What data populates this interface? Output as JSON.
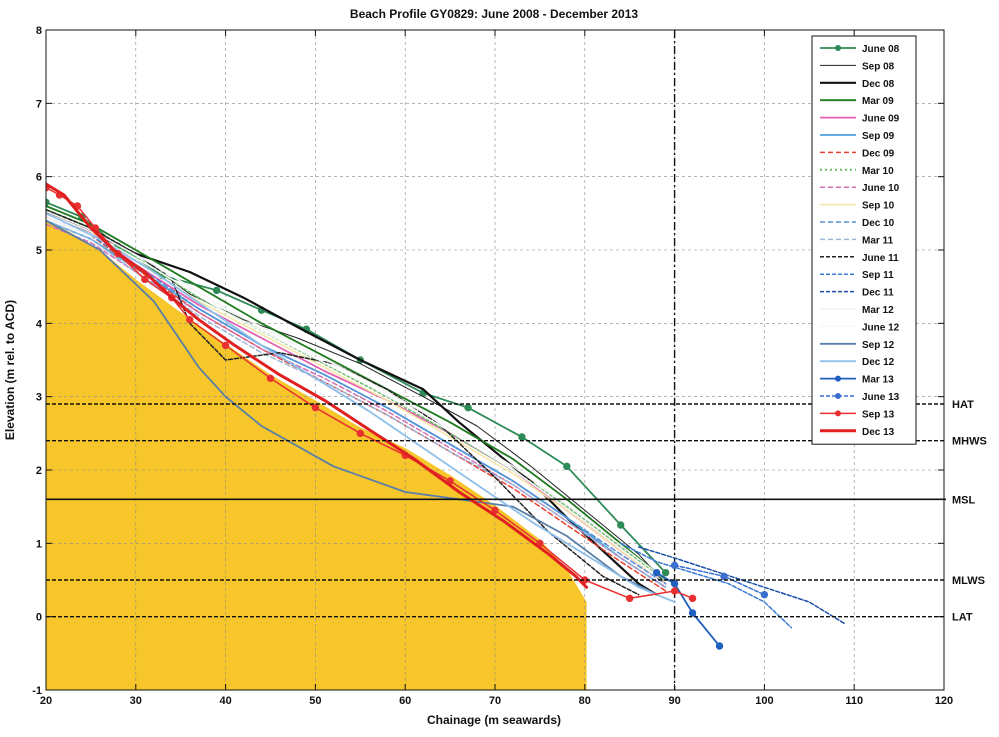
{
  "chart_data": {
    "type": "line",
    "title": "Beach Profile GY0829: June 2008 - December 2013",
    "xlabel": "Chainage (m seawards)",
    "ylabel": "Elevation (m rel. to ACD)",
    "xlim": [
      20,
      120
    ],
    "ylim": [
      -1,
      8
    ],
    "xticks": [
      "20",
      "30",
      "40",
      "50",
      "60",
      "70",
      "80",
      "90",
      "100",
      "110",
      "120"
    ],
    "yticks": [
      "-1",
      "0",
      "1",
      "2",
      "3",
      "4",
      "5",
      "6",
      "7",
      "8"
    ],
    "grid": true,
    "legend_position": "top-right",
    "fill_color": "#f7c62b",
    "fill_region": {
      "x": [
        20,
        21,
        23,
        26,
        30,
        35,
        40,
        45,
        50,
        55,
        60,
        65,
        70,
        75,
        78,
        80.2,
        80.2
      ],
      "y": [
        5.4,
        5.35,
        5.22,
        5.0,
        4.6,
        4.15,
        3.72,
        3.3,
        2.95,
        2.58,
        2.3,
        1.93,
        1.52,
        1.05,
        0.65,
        0.2,
        -1
      ]
    },
    "reference_lines": [
      {
        "label": "HAT",
        "y": 2.9,
        "style": "dashed"
      },
      {
        "label": "MHWS",
        "y": 2.4,
        "style": "dashed"
      },
      {
        "label": "MSL",
        "y": 1.6,
        "style": "solid"
      },
      {
        "label": "MLWS",
        "y": 0.5,
        "style": "dashed"
      },
      {
        "label": "LAT",
        "y": 0.0,
        "style": "dashed"
      }
    ],
    "vertical_line": {
      "x": 90,
      "style": "dash-dot"
    },
    "series": [
      {
        "name": "June 08",
        "color": "#2e8b57",
        "dash": "",
        "width": 1.8,
        "markers": true,
        "x": [
          20,
          24,
          28,
          33,
          39,
          44,
          49,
          55,
          62,
          67,
          73,
          78,
          84,
          89
        ],
        "y": [
          5.65,
          5.45,
          5.05,
          4.65,
          4.45,
          4.18,
          3.92,
          3.5,
          3.05,
          2.85,
          2.45,
          2.05,
          1.25,
          0.6
        ]
      },
      {
        "name": "Sep 08",
        "color": "#222222",
        "dash": "",
        "width": 1.0,
        "markers": false,
        "x": [
          20,
          25,
          30,
          36,
          42,
          48,
          55,
          62,
          68,
          74,
          80,
          86,
          89
        ],
        "y": [
          5.55,
          5.3,
          4.95,
          4.4,
          4.05,
          3.8,
          3.45,
          3.0,
          2.6,
          2.05,
          1.45,
          0.85,
          0.45
        ]
      },
      {
        "name": "Dec 08",
        "color": "#111111",
        "dash": "",
        "width": 2.2,
        "markers": false,
        "x": [
          20,
          25,
          30,
          36,
          42,
          48,
          55,
          62,
          66,
          70,
          74,
          78,
          82,
          86,
          88
        ],
        "y": [
          5.5,
          5.25,
          4.95,
          4.7,
          4.35,
          3.95,
          3.5,
          3.1,
          2.65,
          2.25,
          1.85,
          1.35,
          0.9,
          0.45,
          0.3
        ]
      },
      {
        "name": "Mar 09",
        "color": "#1f7a1f",
        "dash": "",
        "width": 1.8,
        "markers": false,
        "x": [
          20,
          25,
          30,
          37,
          44,
          51,
          58,
          65,
          72,
          78,
          84,
          89
        ],
        "y": [
          5.6,
          5.35,
          5.0,
          4.5,
          4.0,
          3.55,
          3.1,
          2.65,
          2.15,
          1.6,
          1.0,
          0.5
        ]
      },
      {
        "name": "June 09",
        "color": "#e55fb0",
        "dash": "",
        "width": 1.8,
        "markers": false,
        "x": [
          20,
          25,
          30,
          37,
          44,
          51,
          58,
          65,
          72,
          78,
          84,
          89
        ],
        "y": [
          5.5,
          5.25,
          4.8,
          4.25,
          3.8,
          3.35,
          2.95,
          2.5,
          2.0,
          1.45,
          0.9,
          0.45
        ]
      },
      {
        "name": "Sep 09",
        "color": "#4aa3df",
        "dash": "",
        "width": 1.8,
        "markers": false,
        "x": [
          20,
          25,
          30,
          37,
          44,
          51,
          58,
          65,
          72,
          78,
          84,
          89
        ],
        "y": [
          5.4,
          5.15,
          4.75,
          4.2,
          3.7,
          3.3,
          2.85,
          2.35,
          1.85,
          1.35,
          0.8,
          0.4
        ]
      },
      {
        "name": "Dec 09",
        "color": "#e8412f",
        "dash": "5,3",
        "width": 1.5,
        "markers": false,
        "x": [
          20,
          25,
          30,
          37,
          44,
          51,
          58,
          65,
          72,
          78,
          84,
          89
        ],
        "y": [
          5.45,
          5.2,
          4.75,
          4.15,
          3.65,
          3.2,
          2.75,
          2.25,
          1.75,
          1.25,
          0.75,
          0.35
        ]
      },
      {
        "name": "Mar 10",
        "color": "#6dbb6d",
        "dash": "2,3",
        "width": 2.0,
        "markers": false,
        "x": [
          20,
          25,
          30,
          37,
          44,
          51,
          58,
          65,
          72,
          78,
          84,
          89
        ],
        "y": [
          5.55,
          5.3,
          4.9,
          4.35,
          3.9,
          3.45,
          3.0,
          2.5,
          2.0,
          1.5,
          0.95,
          0.5
        ]
      },
      {
        "name": "June 10",
        "color": "#d36fb5",
        "dash": "5,3",
        "width": 1.5,
        "markers": false,
        "x": [
          20,
          25,
          30,
          37,
          44,
          51,
          58,
          65,
          72,
          78,
          84,
          89
        ],
        "y": [
          5.35,
          5.1,
          4.7,
          4.15,
          3.65,
          3.25,
          2.8,
          2.3,
          1.8,
          1.3,
          0.8,
          0.4
        ]
      },
      {
        "name": "Sep 10",
        "color": "#f5e6a6",
        "dash": "",
        "width": 1.5,
        "markers": false,
        "x": [
          20,
          25,
          30,
          37,
          44,
          51,
          58,
          65,
          72,
          78,
          84,
          89
        ],
        "y": [
          5.5,
          5.25,
          4.85,
          4.3,
          3.85,
          3.4,
          2.95,
          2.45,
          1.95,
          1.45,
          0.9,
          0.45
        ]
      },
      {
        "name": "Dec 10",
        "color": "#5b8fd6",
        "dash": "5,3",
        "width": 1.5,
        "markers": false,
        "x": [
          20,
          25,
          30,
          37,
          44,
          51,
          58,
          65,
          72,
          78,
          84,
          89
        ],
        "y": [
          5.45,
          5.2,
          4.8,
          4.2,
          3.7,
          3.3,
          2.85,
          2.35,
          1.85,
          1.35,
          0.85,
          0.45
        ]
      },
      {
        "name": "Mar 11",
        "color": "#9fb8d8",
        "dash": "5,3",
        "width": 1.5,
        "markers": false,
        "x": [
          20,
          25,
          30,
          37,
          44,
          51,
          58,
          65,
          72,
          78,
          84,
          89
        ],
        "y": [
          5.4,
          5.15,
          4.7,
          4.1,
          3.6,
          3.2,
          2.75,
          2.25,
          1.8,
          1.3,
          0.8,
          0.4
        ]
      },
      {
        "name": "June 11",
        "color": "#222222",
        "dash": "4,2",
        "width": 1.5,
        "markers": false,
        "x": [
          20,
          25,
          30,
          34,
          36,
          40,
          46,
          52,
          58,
          64,
          70,
          76,
          82,
          86
        ],
        "y": [
          5.55,
          5.3,
          4.95,
          4.6,
          4.0,
          3.5,
          3.6,
          3.45,
          3.1,
          2.6,
          1.9,
          1.15,
          0.55,
          0.3
        ]
      },
      {
        "name": "Sep 11",
        "color": "#3b7bd4",
        "dash": "4,2",
        "width": 1.5,
        "markers": false,
        "x": [
          84,
          88,
          92,
          96,
          100,
          103
        ],
        "y": [
          1.0,
          0.75,
          0.6,
          0.45,
          0.2,
          -0.15
        ]
      },
      {
        "name": "Dec 11",
        "color": "#1c4fa8",
        "dash": "4,2",
        "width": 1.5,
        "markers": false,
        "x": [
          86,
          90,
          95,
          100,
          105,
          109
        ],
        "y": [
          0.95,
          0.8,
          0.6,
          0.4,
          0.2,
          -0.1
        ]
      },
      {
        "name": "Mar 12",
        "color": "#f3f3f3",
        "dash": "",
        "width": 1.5,
        "markers": false,
        "x": [
          20,
          26,
          32,
          40,
          48,
          56,
          64,
          72,
          80,
          88
        ],
        "y": [
          5.5,
          5.2,
          4.8,
          4.2,
          3.7,
          3.2,
          2.65,
          2.05,
          1.35,
          0.6
        ]
      },
      {
        "name": "June 12",
        "color": "#f8f8f8",
        "dash": "",
        "width": 1.5,
        "markers": false,
        "x": [
          20,
          26,
          32,
          40,
          48,
          56,
          64,
          72,
          80,
          88
        ],
        "y": [
          5.45,
          5.15,
          4.75,
          4.15,
          3.65,
          3.15,
          2.6,
          2.0,
          1.3,
          0.55
        ]
      },
      {
        "name": "Sep 12",
        "color": "#5a7fa8",
        "dash": "",
        "width": 1.8,
        "markers": false,
        "x": [
          20,
          26,
          32,
          37,
          40,
          44,
          52,
          60,
          66,
          72,
          78,
          84,
          88
        ],
        "y": [
          5.4,
          5.0,
          4.3,
          3.4,
          3.0,
          2.6,
          2.05,
          1.7,
          1.6,
          1.5,
          1.1,
          0.55,
          0.3
        ]
      },
      {
        "name": "Dec 12",
        "color": "#8fc0ea",
        "dash": "",
        "width": 1.8,
        "markers": false,
        "x": [
          20,
          26,
          32,
          38,
          44,
          50,
          56,
          62,
          68,
          74,
          80,
          86,
          90
        ],
        "y": [
          5.5,
          5.15,
          4.7,
          4.2,
          3.7,
          3.25,
          2.8,
          2.3,
          1.8,
          1.3,
          0.85,
          0.4,
          0.2
        ]
      },
      {
        "name": "Mar 13",
        "color": "#1f5fbf",
        "dash": "",
        "width": 1.8,
        "markers": true,
        "x": [
          88,
          90,
          92,
          95
        ],
        "y": [
          0.6,
          0.45,
          0.05,
          -0.4
        ]
      },
      {
        "name": "June 13",
        "color": "#3a6fd0",
        "dash": "4,2",
        "width": 1.5,
        "markers": true,
        "x": [
          90,
          95.5,
          100
        ],
        "y": [
          0.7,
          0.55,
          0.3
        ]
      },
      {
        "name": "Sep 13",
        "color": "#e83030",
        "dash": "",
        "width": 1.5,
        "markers": true,
        "x": [
          20,
          21.5,
          23.5,
          25.5,
          28,
          31,
          34,
          36,
          40,
          45,
          50,
          55,
          60,
          65,
          70,
          75,
          80,
          85,
          90,
          92
        ],
        "y": [
          5.85,
          5.75,
          5.6,
          5.3,
          4.95,
          4.6,
          4.35,
          4.05,
          3.7,
          3.25,
          2.85,
          2.5,
          2.2,
          1.85,
          1.45,
          1.0,
          0.5,
          0.25,
          0.35,
          0.25
        ]
      },
      {
        "name": "Dec 13",
        "color": "#e02020",
        "dash": "",
        "width": 3.0,
        "markers": false,
        "x": [
          20,
          22,
          25,
          28,
          31,
          34,
          37,
          41,
          46,
          51,
          56,
          61,
          66,
          71,
          76,
          79,
          80.2
        ],
        "y": [
          5.9,
          5.75,
          5.3,
          4.95,
          4.7,
          4.35,
          4.05,
          3.7,
          3.3,
          2.95,
          2.55,
          2.15,
          1.7,
          1.3,
          0.85,
          0.55,
          0.4
        ]
      }
    ]
  }
}
